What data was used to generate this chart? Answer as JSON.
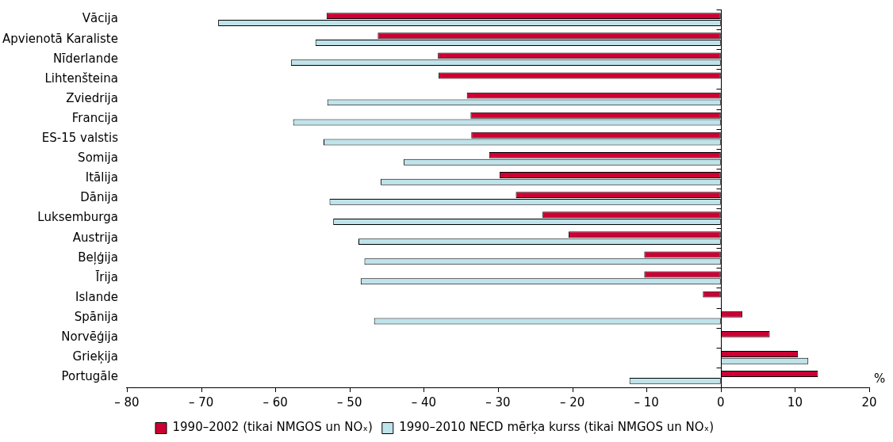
{
  "chart_data": {
    "type": "bar",
    "orientation": "horizontal",
    "xlabel": "%",
    "categories": [
      "Vācija",
      "Apvienotā Karaliste",
      "Nīderlande",
      "Lihtenšteina",
      "Zviedrija",
      "Francija",
      "ES-15 valstis",
      "Somija",
      "Itālija",
      "Dānija",
      "Luksemburga",
      "Austrija",
      "Beļģija",
      "Īrija",
      "Islande",
      "Spānija",
      "Norvēģija",
      "Grieķija",
      "Portugāle"
    ],
    "series": [
      {
        "name": "1990–2002 (tikai NMGOS un NOₓ)",
        "color": "#cc0033",
        "values": [
          -53.1,
          -46.2,
          -38.1,
          -38.0,
          -34.2,
          -33.7,
          -33.6,
          -31.2,
          -29.8,
          -27.6,
          -24.0,
          -20.5,
          -10.3,
          -10.3,
          -2.4,
          2.9,
          6.6,
          10.4,
          13.1
        ]
      },
      {
        "name": "1990–2010 NECD mērķa kurss (tikai NMGOS un NOₓ)",
        "color": "#bfe3ea",
        "values": [
          -67.7,
          -54.6,
          -57.9,
          null,
          -53.0,
          -57.6,
          -53.5,
          -42.7,
          -45.8,
          -52.7,
          -52.2,
          -48.8,
          -48.0,
          -48.5,
          null,
          -46.7,
          null,
          11.8,
          -12.3
        ]
      }
    ],
    "xlim": [
      -80,
      20
    ],
    "xticks": [
      {
        "value": -80,
        "label": "– 80"
      },
      {
        "value": -70,
        "label": "– 70"
      },
      {
        "value": -60,
        "label": "– 60"
      },
      {
        "value": -50,
        "label": "– 50"
      },
      {
        "value": -40,
        "label": "– 40"
      },
      {
        "value": -30,
        "label": "– 30"
      },
      {
        "value": -20,
        "label": "– 20"
      },
      {
        "value": -10,
        "label": "– 10"
      },
      0,
      10,
      20
    ],
    "legend": "bottom"
  }
}
